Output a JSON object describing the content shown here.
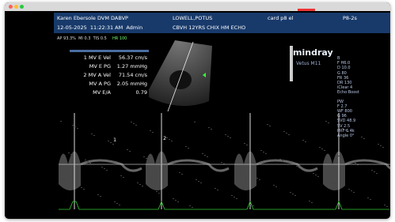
{
  "header": {
    "operator": "Karen Ebersole DVM DABVP",
    "patient": "LOWELL,POTUS",
    "preset": "card p8 el",
    "probe": "P8-2s",
    "datetime": "12-05-2025  11:22:31 AM  Admin",
    "study": "CBVH 12YRS CHIX HM ECHO"
  },
  "status": {
    "power": "AP 93.3%  MI 0.3  TIS 0.5",
    "heart_rate": "HR 100"
  },
  "measurements": {
    "rows": [
      [
        "1 MV E Vel",
        "56.37 cm/s"
      ],
      [
        "MV E PG",
        "1.27 mmHg"
      ],
      [
        "2 MV A Vel",
        "71.54 cm/s"
      ],
      [
        "MV A PG",
        "2.05 mmHg"
      ],
      [
        "MV E/A",
        "0.79"
      ]
    ]
  },
  "brand": {
    "logo": "mindray",
    "model": "Vetus M11"
  },
  "bmode_params": [
    "B",
    "F H6.0",
    "D 10.0",
    "G 80",
    "FR 36",
    "DR 130",
    "iClear 4",
    "Echo Boost"
  ],
  "pw_params": [
    "PW",
    "F 2.7",
    "WF 800",
    "G 96",
    "SVD 48.9",
    "SV 2.5",
    "PRF 6.4k",
    "Angle 0°"
  ],
  "markers": [
    "1",
    "2"
  ]
}
